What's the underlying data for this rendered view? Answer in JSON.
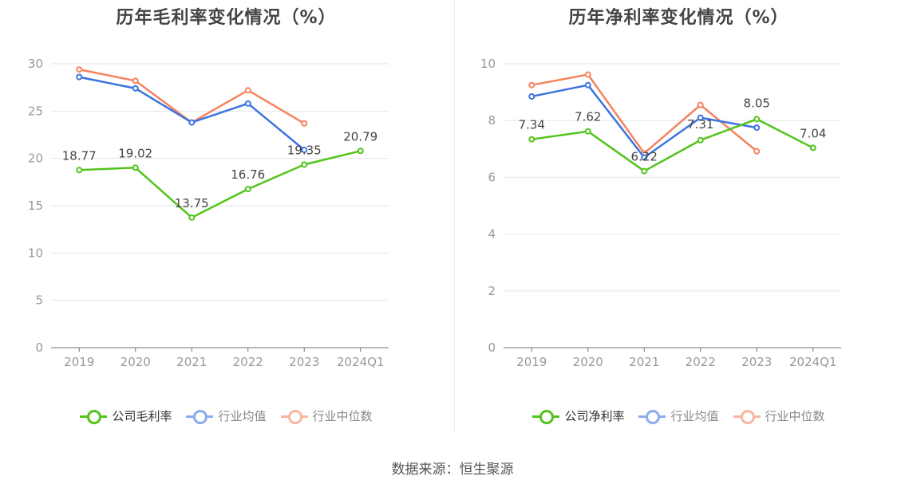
{
  "source_label": "数据来源：恒生聚源",
  "chart_data": [
    {
      "type": "line",
      "title": "历年毛利率变化情况（%）",
      "categories": [
        "2019",
        "2020",
        "2021",
        "2022",
        "2023",
        "2024Q1"
      ],
      "ylim": [
        0,
        30
      ],
      "yticks": [
        0,
        5,
        10,
        15,
        20,
        25,
        30
      ],
      "grid": true,
      "legend_position": "bottom",
      "series": [
        {
          "name": "公司毛利率",
          "color": "#52c41a",
          "values": [
            18.77,
            19.02,
            13.75,
            16.76,
            19.35,
            20.79
          ],
          "labels": [
            "18.77",
            "19.02",
            "13.75",
            "16.76",
            "19.35",
            "20.79"
          ],
          "legend_dim": false
        },
        {
          "name": "行业均值",
          "color": "#3b74e0",
          "values": [
            28.6,
            27.4,
            23.8,
            25.8,
            20.9,
            null
          ],
          "legend_dim": true
        },
        {
          "name": "行业中位数",
          "color": "#f4845f",
          "values": [
            29.4,
            28.2,
            23.8,
            27.2,
            23.7,
            null
          ],
          "legend_dim": true
        }
      ]
    },
    {
      "type": "line",
      "title": "历年净利率变化情况（%）",
      "categories": [
        "2019",
        "2020",
        "2021",
        "2022",
        "2023",
        "2024Q1"
      ],
      "ylim": [
        0,
        10
      ],
      "yticks": [
        0,
        2,
        4,
        6,
        8,
        10
      ],
      "grid": true,
      "legend_position": "bottom",
      "series": [
        {
          "name": "公司净利率",
          "color": "#52c41a",
          "values": [
            7.34,
            7.62,
            6.22,
            7.31,
            8.05,
            7.04
          ],
          "labels": [
            "7.34",
            "7.62",
            "6.22",
            "7.31",
            "8.05",
            "7.04"
          ],
          "legend_dim": false
        },
        {
          "name": "行业均值",
          "color": "#3b74e0",
          "values": [
            8.85,
            9.25,
            6.7,
            8.1,
            7.75,
            null
          ],
          "legend_dim": true
        },
        {
          "name": "行业中位数",
          "color": "#f4845f",
          "values": [
            9.25,
            9.62,
            6.85,
            8.55,
            6.92,
            null
          ],
          "legend_dim": true
        }
      ]
    }
  ]
}
